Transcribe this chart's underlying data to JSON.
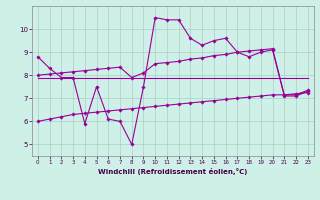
{
  "xlabel": "Windchill (Refroidissement éolien,°C)",
  "background_color": "#cff0e8",
  "line_color": "#990099",
  "xlim": [
    -0.5,
    23.5
  ],
  "ylim": [
    4.5,
    11.0
  ],
  "yticks": [
    5,
    6,
    7,
    8,
    9,
    10
  ],
  "xticks": [
    0,
    1,
    2,
    3,
    4,
    5,
    6,
    7,
    8,
    9,
    10,
    11,
    12,
    13,
    14,
    15,
    16,
    17,
    18,
    19,
    20,
    21,
    22,
    23
  ],
  "line1_x": [
    0,
    1,
    2,
    3,
    4,
    5,
    6,
    7,
    8,
    9,
    10,
    11,
    12,
    13,
    14,
    15,
    16,
    17,
    18,
    19,
    20,
    21,
    22,
    23
  ],
  "line1_y": [
    8.8,
    8.3,
    7.9,
    7.9,
    5.9,
    7.5,
    6.1,
    6.0,
    5.0,
    7.5,
    10.5,
    10.4,
    10.4,
    9.6,
    9.3,
    9.5,
    9.6,
    9.0,
    8.8,
    9.0,
    9.1,
    7.1,
    7.1,
    7.3
  ],
  "line2_x": [
    0,
    23
  ],
  "line2_y": [
    7.9,
    7.9
  ],
  "line3_x": [
    0,
    1,
    2,
    3,
    4,
    5,
    6,
    7,
    8,
    9,
    10,
    11,
    12,
    13,
    14,
    15,
    16,
    17,
    18,
    19,
    20,
    21,
    22,
    23
  ],
  "line3_y": [
    8.0,
    8.05,
    8.1,
    8.15,
    8.2,
    8.25,
    8.3,
    8.35,
    7.9,
    8.1,
    8.5,
    8.55,
    8.6,
    8.7,
    8.75,
    8.85,
    8.9,
    9.0,
    9.05,
    9.1,
    9.15,
    7.15,
    7.15,
    7.35
  ],
  "line4_x": [
    0,
    1,
    2,
    3,
    4,
    5,
    6,
    7,
    8,
    9,
    10,
    11,
    12,
    13,
    14,
    15,
    16,
    17,
    18,
    19,
    20,
    21,
    22,
    23
  ],
  "line4_y": [
    6.0,
    6.1,
    6.2,
    6.3,
    6.35,
    6.4,
    6.45,
    6.5,
    6.55,
    6.6,
    6.65,
    6.7,
    6.75,
    6.8,
    6.85,
    6.9,
    6.95,
    7.0,
    7.05,
    7.1,
    7.15,
    7.15,
    7.2,
    7.25
  ]
}
